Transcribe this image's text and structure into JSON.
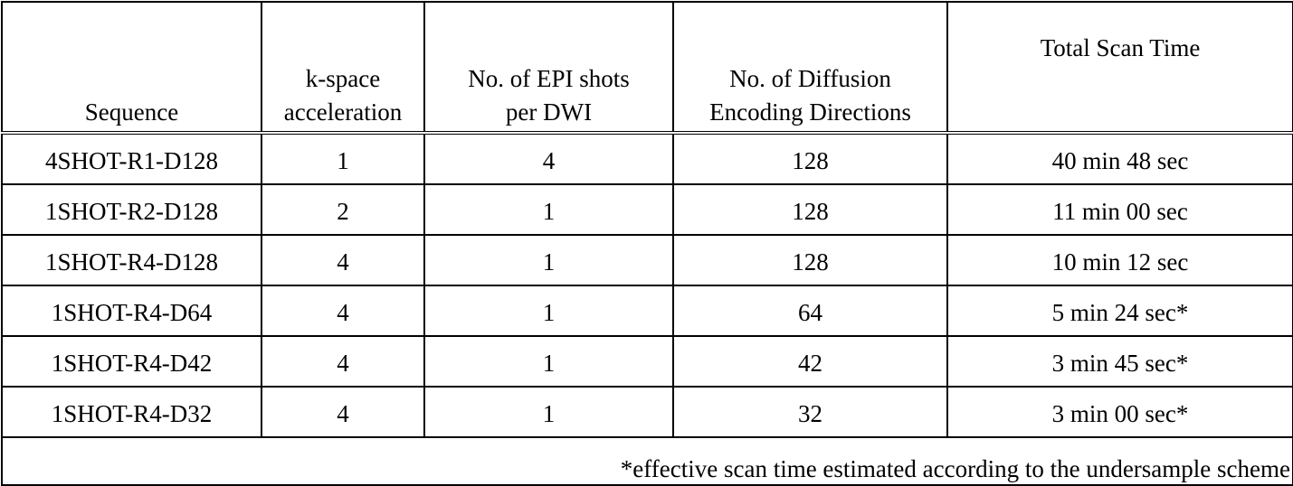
{
  "table": {
    "header": [
      [
        "Sequence"
      ],
      [
        "k-space",
        "acceleration"
      ],
      [
        "No. of EPI shots",
        "per DWI"
      ],
      [
        "No. of Diffusion",
        "Encoding Directions"
      ],
      [
        "Total Scan Time"
      ]
    ],
    "rows": [
      [
        "4SHOT-R1-D128",
        "1",
        "4",
        "128",
        "40 min 48 sec"
      ],
      [
        "1SHOT-R2-D128",
        "2",
        "1",
        "128",
        "11 min 00 sec"
      ],
      [
        "1SHOT-R4-D128",
        "4",
        "1",
        "128",
        "10 min 12 sec"
      ],
      [
        "1SHOT-R4-D64",
        "4",
        "1",
        "64",
        "5 min 24 sec*"
      ],
      [
        "1SHOT-R4-D42",
        "4",
        "1",
        "42",
        "3 min 45 sec*"
      ],
      [
        "1SHOT-R4-D32",
        "4",
        "1",
        "32",
        "3 min 00 sec*"
      ]
    ],
    "footnote": "*effective scan time estimated according to the undersample scheme"
  }
}
